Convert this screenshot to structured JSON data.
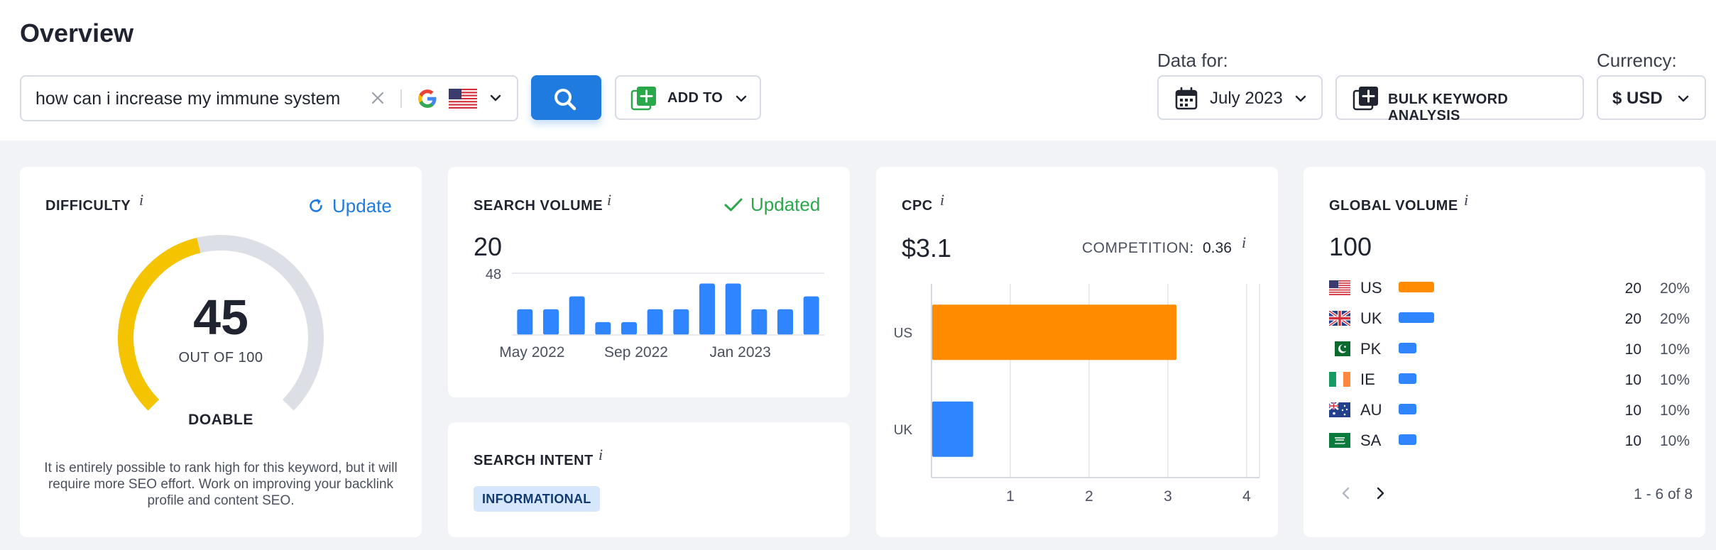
{
  "header": {
    "title": "Overview",
    "search": {
      "value": "how can i increase my immune system",
      "placeholder": ""
    },
    "add_to_label": "ADD TO",
    "data_for_label": "Data for:",
    "date_value": "July 2023",
    "bulk_label": "BULK KEYWORD ANALYSIS",
    "currency_label": "Currency:",
    "currency_value": "$ USD",
    "accent_color": "#1f7be0"
  },
  "difficulty": {
    "title": "DIFFICULTY",
    "info": "i",
    "update_label": "Update",
    "value": "45",
    "value_num": 45,
    "max": 100,
    "out_of": "OUT OF 100",
    "level": "DOABLE",
    "description": "It is entirely possible to rank high for this keyword, but it will require more SEO effort. Work on improving your backlink profile and content SEO.",
    "gauge_color": "#f5c400",
    "gauge_track_color": "#dcdfe6"
  },
  "search_volume": {
    "title": "SEARCH VOLUME",
    "info": "i",
    "status": "Updated",
    "value": "20",
    "chart_data": {
      "type": "bar",
      "values": [
        20,
        20,
        30,
        10,
        10,
        20,
        20,
        40,
        40,
        20,
        20,
        30
      ],
      "x_tick_labels": [
        {
          "index": 0,
          "label": "May 2022"
        },
        {
          "index": 4,
          "label": "Sep 2022"
        },
        {
          "index": 8,
          "label": "Jan 2023"
        }
      ],
      "y_tick_label": "48",
      "ylim": [
        0,
        48
      ],
      "color": "#2e85ff"
    }
  },
  "search_intent": {
    "title": "SEARCH INTENT",
    "info": "i",
    "badge": "INFORMATIONAL"
  },
  "cpc": {
    "title": "CPC",
    "info": "i",
    "value": "$3.1",
    "competition_label": "COMPETITION",
    "competition_sep": ":",
    "competition_value": "0.36",
    "chart_data": {
      "type": "bar",
      "orientation": "horizontal",
      "categories": [
        "US",
        "UK"
      ],
      "values": [
        3.1,
        0.52
      ],
      "colors": [
        "#ff8c00",
        "#2e85ff"
      ],
      "x_ticks": [
        "1",
        "2",
        "3",
        "4"
      ],
      "xlim": [
        0,
        4
      ]
    }
  },
  "global_volume": {
    "title": "GLOBAL VOLUME",
    "info": "i",
    "value": "100",
    "rows": [
      {
        "flag": "us-flag-icon",
        "code": "US",
        "count": "20",
        "pct": "20%",
        "share": 0.2,
        "color": "#ff8c00"
      },
      {
        "flag": "uk-flag-icon",
        "code": "UK",
        "count": "20",
        "pct": "20%",
        "share": 0.2,
        "color": "#2e85ff"
      },
      {
        "flag": "pk-flag-icon",
        "code": "PK",
        "count": "10",
        "pct": "10%",
        "share": 0.1,
        "color": "#2e85ff"
      },
      {
        "flag": "ie-flag-icon",
        "code": "IE",
        "count": "10",
        "pct": "10%",
        "share": 0.1,
        "color": "#2e85ff"
      },
      {
        "flag": "au-flag-icon",
        "code": "AU",
        "count": "10",
        "pct": "10%",
        "share": 0.1,
        "color": "#2e85ff"
      },
      {
        "flag": "sa-flag-icon",
        "code": "SA",
        "count": "10",
        "pct": "10%",
        "share": 0.1,
        "color": "#2e85ff"
      }
    ],
    "pagination": "1 - 6 of 8"
  }
}
